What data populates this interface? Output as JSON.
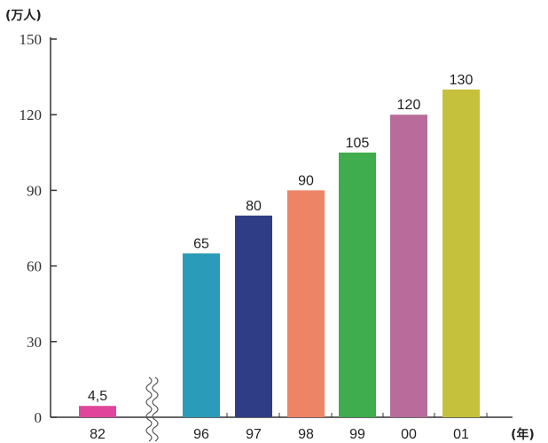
{
  "chart_data": {
    "type": "bar",
    "y_unit_label": "(万人)",
    "x_unit_label": "(年)",
    "categories": [
      "82",
      "96",
      "97",
      "98",
      "99",
      "00",
      "01"
    ],
    "values": [
      4.5,
      65,
      80,
      90,
      105,
      120,
      130
    ],
    "value_labels": [
      "4,5",
      "65",
      "80",
      "90",
      "105",
      "120",
      "130"
    ],
    "colors": [
      "#e0459b",
      "#2a9bb8",
      "#2f3d87",
      "#ee8466",
      "#3fad4e",
      "#b86c9b",
      "#c6c13c"
    ],
    "y_ticks": [
      "0",
      "30",
      "60",
      "90",
      "120",
      "150"
    ],
    "ylim": [
      0,
      150
    ],
    "axis_break_after": "82",
    "grid": false,
    "legend": "none"
  }
}
